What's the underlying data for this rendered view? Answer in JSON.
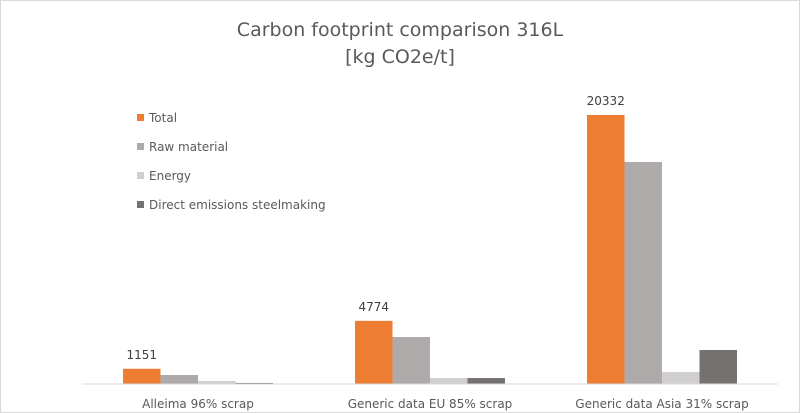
{
  "chart_data": {
    "type": "bar",
    "title": "Carbon footprint comparison 316L",
    "subtitle": "[kg CO2e/t]",
    "categories": [
      "Alleima 96% scrap",
      "Generic data EU 85% scrap",
      "Generic data Asia 31% scrap"
    ],
    "series": [
      {
        "name": "Total",
        "color": "#ED7D31",
        "values": [
          1151,
          4774,
          20332
        ],
        "labels": [
          "1151",
          "4774",
          "20332"
        ]
      },
      {
        "name": "Raw material",
        "color": "#AEAAAA",
        "values": [
          680,
          3550,
          16780
        ]
      },
      {
        "name": "Energy",
        "color": "#D0CECE",
        "values": [
          230,
          450,
          900
        ]
      },
      {
        "name": "Direct emissions steelmaking",
        "color": "#767171",
        "values": [
          80,
          450,
          2570
        ]
      }
    ],
    "ylim": [
      0,
      20332
    ],
    "grid": false,
    "legend": "top-left"
  }
}
